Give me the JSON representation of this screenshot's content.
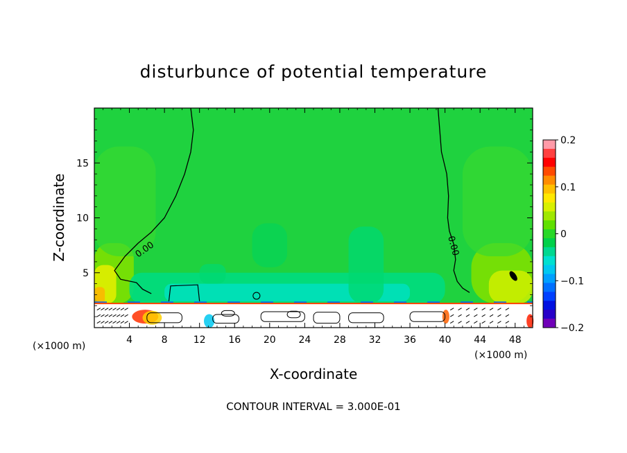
{
  "chart_data": {
    "type": "heatmap",
    "title": "disturbunce of potential temperature",
    "xlabel": "X-coordinate",
    "ylabel": "Z-coordinate",
    "x_unit": "(×1000 m)",
    "y_unit": "(×1000 m)",
    "xlim": [
      0,
      50
    ],
    "ylim": [
      0,
      20
    ],
    "x_ticks": [
      4,
      8,
      12,
      16,
      20,
      24,
      28,
      32,
      36,
      40,
      44,
      48
    ],
    "y_ticks": [
      5,
      10,
      15
    ],
    "contour_interval_text": "CONTOUR INTERVAL = 3.000E-01",
    "contour_labels": [
      "0.00",
      "0.00"
    ],
    "colorbar": {
      "min": -0.2,
      "max": 0.2,
      "tick_values": [
        0.2,
        0.1,
        0,
        -0.1,
        -0.2
      ],
      "tick_labels": [
        "0.2",
        "0.1",
        "0",
        "−0.1",
        "−0.2"
      ],
      "colors": [
        "#ff9aa8",
        "#ff4040",
        "#ff0000",
        "#ff4a00",
        "#ff8c00",
        "#ffc000",
        "#ffe800",
        "#d8f000",
        "#a0e800",
        "#60e000",
        "#28d828",
        "#00d04a",
        "#00d890",
        "#00e0d0",
        "#00c8f0",
        "#00a0ff",
        "#0070ff",
        "#0040ff",
        "#0010e0",
        "#2800c8",
        "#7000b8"
      ]
    },
    "background_value_color": "#1fd23f"
  }
}
